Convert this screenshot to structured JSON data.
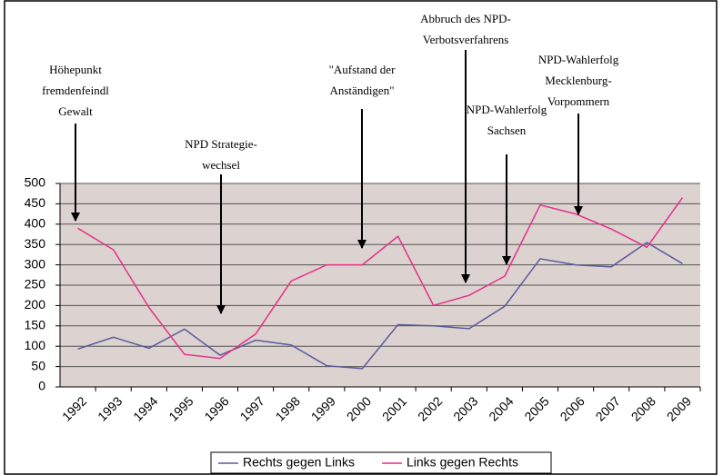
{
  "chart_data": {
    "type": "line",
    "categories": [
      "1992",
      "1993",
      "1994",
      "1995",
      "1996",
      "1997",
      "1998",
      "1999",
      "2000",
      "2001",
      "2002",
      "2003",
      "2004",
      "2005",
      "2006",
      "2007",
      "2008",
      "2009"
    ],
    "series": [
      {
        "name": "Rechts gegen Links",
        "color": "#5b5b9b",
        "values": [
          93,
          122,
          95,
          142,
          78,
          115,
          103,
          52,
          45,
          153,
          150,
          143,
          198,
          315,
          300,
          295,
          355,
          303
        ]
      },
      {
        "name": "Links gegen Rechts",
        "color": "#e6308a",
        "values": [
          390,
          337,
          195,
          80,
          70,
          130,
          260,
          300,
          300,
          370,
          200,
          225,
          272,
          447,
          425,
          388,
          343,
          465
        ]
      }
    ],
    "ylim": [
      0,
      500
    ],
    "yticks": [
      0,
      50,
      100,
      150,
      200,
      250,
      300,
      350,
      400,
      450,
      500
    ],
    "grid": true,
    "legend": "bottom",
    "annotations": [
      {
        "lines": [
          "Höhepunkt",
          "fremdenfeindl",
          "Gewalt"
        ]
      },
      {
        "lines": [
          "NPD Strategie-",
          "wechsel"
        ]
      },
      {
        "lines": [
          "\"Aufstand der",
          "Anständigen\""
        ]
      },
      {
        "lines": [
          "Abbruch des NPD-",
          "Verbotsverfahrens"
        ]
      },
      {
        "lines": [
          "NPD-Wahlerfolg",
          "Sachsen"
        ]
      },
      {
        "lines": [
          "NPD-Wahlerfolg",
          "Mecklenburg-",
          "Vorpommern"
        ]
      }
    ]
  }
}
